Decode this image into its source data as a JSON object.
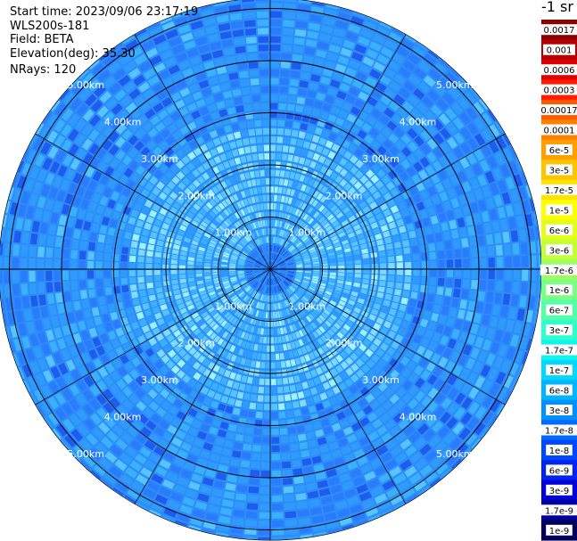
{
  "header": {
    "start_time": "Start time: 2023/09/06 23:17:19",
    "instrument": "WLS200s-181",
    "field": "Field: BETA",
    "elevation": "Elevation(deg): 35.30",
    "nrays": "NRays: 120"
  },
  "chart_data": {
    "type": "heatmap",
    "projection": "polar-ppi",
    "title": "",
    "n_rays": 120,
    "range_rings_km": [
      1,
      2,
      3,
      4,
      5
    ],
    "ring_label_texts": [
      "1.00km",
      "2.00km",
      "3.00km",
      "4.00km",
      "5.00km"
    ],
    "max_range_km": 5.2,
    "grid": true,
    "colorbar": {
      "title": "-1 sr",
      "position": "right",
      "scale": "log",
      "ticks": [
        {
          "label": "0.0017",
          "value": 0.0017,
          "color": "#8a0000"
        },
        {
          "label": "0.001",
          "value": 0.001,
          "color": "#b40000"
        },
        {
          "label": "0.0006",
          "value": 0.0006,
          "color": "#dc0000"
        },
        {
          "label": "0.0003",
          "value": 0.0003,
          "color": "#ff1a00"
        },
        {
          "label": "0.00017",
          "value": 0.00017,
          "color": "#ff5a00"
        },
        {
          "label": "0.0001",
          "value": 0.0001,
          "color": "#ff8000"
        },
        {
          "label": "6e-5",
          "value": 6e-05,
          "color": "#ffa000"
        },
        {
          "label": "3e-5",
          "value": 3e-05,
          "color": "#ffc400"
        },
        {
          "label": "1.7e-5",
          "value": 1.7e-05,
          "color": "#ffe400"
        },
        {
          "label": "1e-5",
          "value": 1e-05,
          "color": "#ffff00"
        },
        {
          "label": "6e-6",
          "value": 6e-06,
          "color": "#e2ff1c"
        },
        {
          "label": "3e-6",
          "value": 3e-06,
          "color": "#c4ff38"
        },
        {
          "label": "1.7e-6",
          "value": 1.7e-06,
          "color": "#9cff60"
        },
        {
          "label": "1e-6",
          "value": 1e-06,
          "color": "#78ff84"
        },
        {
          "label": "6e-7",
          "value": 6e-07,
          "color": "#54ffa8"
        },
        {
          "label": "3e-7",
          "value": 3e-07,
          "color": "#30ffcc"
        },
        {
          "label": "1.7e-7",
          "value": 1.7e-07,
          "color": "#10f4ee"
        },
        {
          "label": "1e-7",
          "value": 1e-07,
          "color": "#00d8ff"
        },
        {
          "label": "6e-8",
          "value": 6e-08,
          "color": "#00b4ff"
        },
        {
          "label": "3e-8",
          "value": 3e-08,
          "color": "#0090ff"
        },
        {
          "label": "1.7e-8",
          "value": 1.7e-08,
          "color": "#006cff"
        },
        {
          "label": "1e-8",
          "value": 1e-08,
          "color": "#0048ff"
        },
        {
          "label": "6e-9",
          "value": 6e-09,
          "color": "#0024f0"
        },
        {
          "label": "3e-9",
          "value": 3e-09,
          "color": "#0000d8"
        },
        {
          "label": "1.7e-9",
          "value": 1.7e-09,
          "color": "#00009c"
        },
        {
          "label": "1e-9",
          "value": 1e-09,
          "color": "#00005a"
        }
      ]
    }
  }
}
